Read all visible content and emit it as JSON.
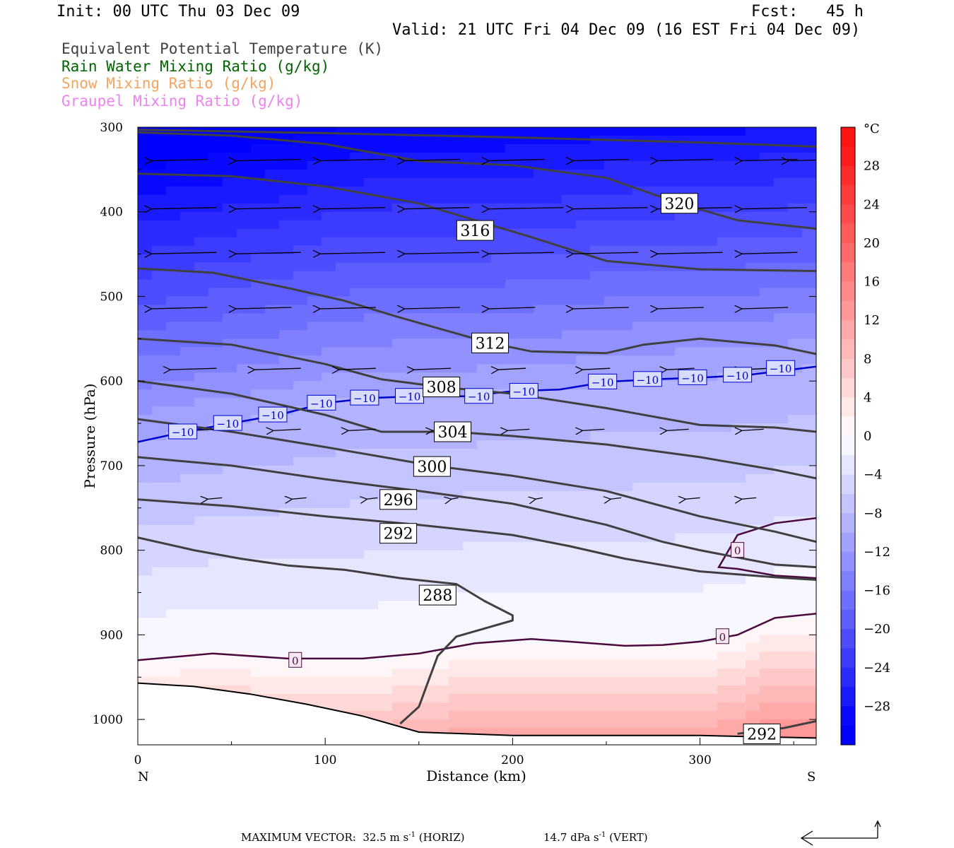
{
  "header": {
    "init": "Init: 00 UTC Thu 03 Dec 09",
    "fcst": "Fcst:   45 h",
    "valid": "Valid: 21 UTC Fri 04 Dec 09 (16 EST Fri 04 Dec 09)"
  },
  "legend": [
    {
      "label": "Equivalent Potential Temperature (K)",
      "color": "#404040"
    },
    {
      "label": "Rain Water Mixing Ratio (g/kg)",
      "color": "#006400"
    },
    {
      "label": "Snow Mixing Ratio (g/kg)",
      "color": "#f4a460"
    },
    {
      "label": "Graupel Mixing Ratio (g/kg)",
      "color": "#ee82ee"
    }
  ],
  "footer": {
    "prefix": "MAXIMUM VECTOR:",
    "horiz_value": "32.5 m s",
    "horiz_exp": "-1",
    "horiz_tag": "(HORIZ)",
    "vert_value": "14.7 dPa s",
    "vert_exp": "-1",
    "vert_tag": "(VERT)"
  },
  "chart_data": {
    "type": "cross-section",
    "xlabel": "Distance (km)",
    "ylabel": "Pressure (hPa)",
    "x_end_labels": {
      "left": "N",
      "right": "S"
    },
    "xlim": [
      0,
      362
    ],
    "ylim": [
      1030,
      300
    ],
    "x_ticks": [
      0,
      100,
      200,
      300
    ],
    "y_ticks": [
      300,
      400,
      500,
      600,
      700,
      800,
      900,
      1000
    ],
    "temperature_colorbar": {
      "unit": "°C",
      "levels": [
        -32,
        -30,
        -28,
        -26,
        -24,
        -22,
        -20,
        -18,
        -16,
        -14,
        -12,
        -10,
        -8,
        -6,
        -4,
        -2,
        0,
        2,
        4,
        6,
        8,
        10,
        12,
        14,
        16,
        18,
        20,
        22,
        24,
        26,
        28,
        30,
        32
      ],
      "tick_labels": [
        28,
        24,
        20,
        16,
        12,
        8,
        4,
        0,
        -4,
        -8,
        -12,
        -16,
        -20,
        -24,
        -28
      ]
    },
    "theta_e_contours": [
      {
        "label": "288",
        "label_at": [
          160,
          853
        ],
        "points": [
          [
            140,
            1005
          ],
          [
            150,
            985
          ],
          [
            155,
            955
          ],
          [
            160,
            925
          ],
          [
            170,
            902
          ],
          [
            200,
            883
          ],
          [
            200,
            877
          ],
          [
            185,
            860
          ],
          [
            170,
            840
          ],
          [
            140,
            833
          ],
          [
            110,
            823
          ],
          [
            80,
            818
          ],
          [
            55,
            810
          ],
          [
            30,
            800
          ],
          [
            0,
            785
          ]
        ]
      },
      {
        "label": "292",
        "label_at": [
          139,
          780
        ],
        "points": [
          [
            0,
            740
          ],
          [
            50,
            748
          ],
          [
            100,
            760
          ],
          [
            150,
            770
          ],
          [
            200,
            782
          ],
          [
            230,
            795
          ],
          [
            260,
            810
          ],
          [
            300,
            825
          ],
          [
            340,
            832
          ],
          [
            362,
            835
          ]
        ]
      },
      {
        "label": "292",
        "label_at": [
          333,
          1017
        ],
        "points": [
          [
            320,
            1017
          ],
          [
            345,
            1010
          ],
          [
            362,
            1002
          ]
        ]
      },
      {
        "label": "296",
        "label_at": [
          139,
          740
        ],
        "points": [
          [
            0,
            690
          ],
          [
            50,
            700
          ],
          [
            100,
            716
          ],
          [
            150,
            730
          ],
          [
            200,
            745
          ],
          [
            250,
            770
          ],
          [
            280,
            790
          ],
          [
            300,
            800
          ],
          [
            340,
            817
          ],
          [
            362,
            820
          ]
        ]
      },
      {
        "label": "300",
        "label_at": [
          157,
          701
        ],
        "points": [
          [
            0,
            645
          ],
          [
            50,
            660
          ],
          [
            100,
            678
          ],
          [
            157,
            700
          ],
          [
            200,
            712
          ],
          [
            250,
            730
          ],
          [
            300,
            760
          ],
          [
            340,
            778
          ],
          [
            362,
            790
          ]
        ]
      },
      {
        "label": "304",
        "label_at": [
          168,
          660
        ],
        "points": [
          [
            0,
            600
          ],
          [
            50,
            615
          ],
          [
            100,
            640
          ],
          [
            130,
            660
          ],
          [
            168,
            660
          ],
          [
            200,
            665
          ],
          [
            250,
            675
          ],
          [
            300,
            690
          ],
          [
            340,
            705
          ],
          [
            362,
            715
          ]
        ]
      },
      {
        "label": "308",
        "label_at": [
          162,
          607
        ],
        "points": [
          [
            0,
            550
          ],
          [
            50,
            557
          ],
          [
            100,
            580
          ],
          [
            130,
            598
          ],
          [
            162,
            607
          ],
          [
            200,
            615
          ],
          [
            250,
            632
          ],
          [
            300,
            652
          ],
          [
            340,
            655
          ],
          [
            362,
            660
          ]
        ]
      },
      {
        "label": "312",
        "label_at": [
          188,
          555
        ],
        "points": [
          [
            0,
            467
          ],
          [
            40,
            472
          ],
          [
            80,
            490
          ],
          [
            110,
            505
          ],
          [
            140,
            525
          ],
          [
            188,
            555
          ],
          [
            210,
            565
          ],
          [
            250,
            567
          ],
          [
            270,
            557
          ],
          [
            300,
            550
          ],
          [
            340,
            558
          ],
          [
            362,
            568
          ]
        ]
      },
      {
        "label": "316",
        "label_at": [
          180,
          422
        ],
        "points": [
          [
            0,
            355
          ],
          [
            50,
            358
          ],
          [
            100,
            370
          ],
          [
            150,
            390
          ],
          [
            180,
            410
          ],
          [
            210,
            430
          ],
          [
            250,
            458
          ],
          [
            300,
            468
          ],
          [
            362,
            470
          ]
        ]
      },
      {
        "label": "320",
        "label_at": [
          289,
          390
        ],
        "points": [
          [
            0,
            306
          ],
          [
            50,
            310
          ],
          [
            100,
            320
          ],
          [
            150,
            340
          ],
          [
            200,
            345
          ],
          [
            250,
            360
          ],
          [
            289,
            390
          ],
          [
            320,
            410
          ],
          [
            362,
            420
          ]
        ]
      },
      {
        "label": "",
        "label_at": null,
        "points": [
          [
            0,
            303
          ],
          [
            100,
            307
          ],
          [
            200,
            312
          ],
          [
            300,
            318
          ],
          [
            362,
            323
          ]
        ]
      }
    ],
    "temperature_contours": [
      {
        "value": -10,
        "label": "−10",
        "color": "#0000cc",
        "points": [
          [
            0,
            672
          ],
          [
            25,
            660
          ],
          [
            50,
            650
          ],
          [
            75,
            640
          ],
          [
            100,
            626
          ],
          [
            125,
            620
          ],
          [
            150,
            618
          ],
          [
            175,
            618
          ],
          [
            200,
            612
          ],
          [
            225,
            610
          ],
          [
            250,
            601
          ],
          [
            275,
            598
          ],
          [
            300,
            596
          ],
          [
            325,
            593
          ],
          [
            362,
            583
          ]
        ],
        "labels_at": [
          [
            24,
            660
          ],
          [
            48,
            650
          ],
          [
            72,
            640
          ],
          [
            98,
            626
          ],
          [
            121,
            620
          ],
          [
            145,
            618
          ],
          [
            182,
            618
          ],
          [
            206,
            612
          ],
          [
            248,
            601
          ],
          [
            272,
            598
          ],
          [
            296,
            596
          ],
          [
            320,
            593
          ],
          [
            343,
            585
          ]
        ]
      },
      {
        "value": 0,
        "label": "0",
        "color": "#4b0a3c",
        "points": [
          [
            0,
            930
          ],
          [
            40,
            922
          ],
          [
            80,
            928
          ],
          [
            120,
            928
          ],
          [
            150,
            922
          ],
          [
            180,
            910
          ],
          [
            210,
            905
          ],
          [
            230,
            908
          ],
          [
            260,
            913
          ],
          [
            280,
            912
          ],
          [
            300,
            908
          ],
          [
            320,
            900
          ],
          [
            340,
            880
          ],
          [
            362,
            875
          ]
        ],
        "labels_at": [
          [
            84,
            930
          ],
          [
            312,
            902
          ]
        ]
      },
      {
        "value": 0,
        "label": "0",
        "color": "#4b0a3c",
        "points": [
          [
            362,
            762
          ],
          [
            340,
            768
          ],
          [
            320,
            782
          ],
          [
            310,
            820
          ],
          [
            320,
            822
          ],
          [
            340,
            830
          ],
          [
            362,
            833
          ]
        ],
        "labels_at": [
          [
            320,
            800
          ]
        ]
      }
    ],
    "terrain_surface": [
      [
        0,
        957
      ],
      [
        30,
        961
      ],
      [
        60,
        970
      ],
      [
        90,
        982
      ],
      [
        120,
        996
      ],
      [
        150,
        1015
      ],
      [
        200,
        1019
      ],
      [
        250,
        1019
      ],
      [
        300,
        1019
      ],
      [
        362,
        1022
      ]
    ],
    "wind_vectors_note": "horizontal/vertical circulation vectors",
    "wind_vectors": [
      [
        7,
        338,
        -30,
        0
      ],
      [
        52,
        338,
        -35,
        0
      ],
      [
        97,
        338,
        -35,
        0
      ],
      [
        142,
        338,
        -30,
        0
      ],
      [
        187,
        338,
        -30,
        0
      ],
      [
        232,
        338,
        -30,
        0
      ],
      [
        277,
        338,
        -30,
        0
      ],
      [
        322,
        338,
        -30,
        0
      ],
      [
        347,
        338,
        -30,
        0
      ],
      [
        7,
        395,
        -35,
        0
      ],
      [
        52,
        395,
        -35,
        0
      ],
      [
        97,
        395,
        -35,
        0
      ],
      [
        142,
        395,
        -35,
        0
      ],
      [
        187,
        395,
        -40,
        0
      ],
      [
        232,
        395,
        -40,
        0
      ],
      [
        277,
        395,
        -40,
        0
      ],
      [
        322,
        395,
        -35,
        0
      ],
      [
        7,
        448,
        -35,
        0
      ],
      [
        52,
        448,
        -35,
        0
      ],
      [
        97,
        448,
        -35,
        0
      ],
      [
        142,
        448,
        -40,
        0
      ],
      [
        187,
        448,
        -35,
        0
      ],
      [
        232,
        448,
        -35,
        0
      ],
      [
        277,
        448,
        -35,
        0
      ],
      [
        322,
        448,
        -30,
        0
      ],
      [
        7,
        513,
        -30,
        0
      ],
      [
        52,
        513,
        -30,
        0
      ],
      [
        97,
        513,
        -30,
        0
      ],
      [
        142,
        513,
        -30,
        0
      ],
      [
        187,
        513,
        -25,
        0
      ],
      [
        232,
        513,
        -30,
        0
      ],
      [
        277,
        513,
        -25,
        0
      ],
      [
        322,
        513,
        -25,
        0
      ],
      [
        17,
        585,
        -25,
        0
      ],
      [
        62,
        585,
        -25,
        0
      ],
      [
        107,
        585,
        -20,
        0
      ],
      [
        147,
        585,
        -20,
        0
      ],
      [
        192,
        585,
        -15,
        0
      ],
      [
        237,
        585,
        -15,
        0
      ],
      [
        282,
        585,
        -15,
        0
      ],
      [
        322,
        585,
        -15,
        0
      ],
      [
        27,
        657,
        -15,
        0
      ],
      [
        72,
        657,
        -15,
        0
      ],
      [
        112,
        657,
        -15,
        0
      ],
      [
        157,
        657,
        -12,
        0
      ],
      [
        197,
        657,
        -12,
        0
      ],
      [
        237,
        657,
        -12,
        0
      ],
      [
        282,
        657,
        -12,
        0
      ],
      [
        322,
        657,
        -12,
        0
      ],
      [
        37,
        738,
        -8,
        0
      ],
      [
        82,
        738,
        -8,
        0
      ],
      [
        122,
        738,
        -6,
        0
      ],
      [
        167,
        738,
        -4,
        0
      ],
      [
        212,
        738,
        -4,
        0
      ],
      [
        252,
        738,
        -6,
        0
      ],
      [
        292,
        738,
        -8,
        0
      ],
      [
        322,
        738,
        -8,
        0
      ]
    ]
  }
}
